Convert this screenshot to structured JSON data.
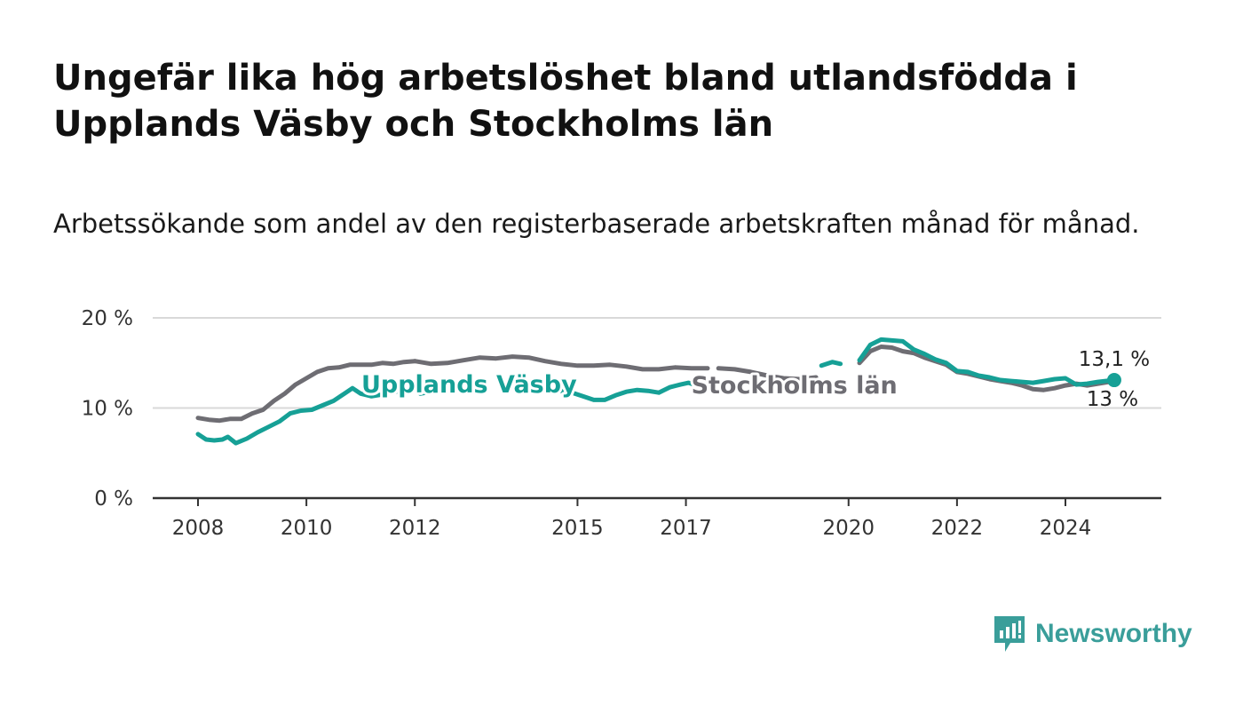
{
  "page": {
    "title": "Ungefär lika hög arbetslöshet bland utlandsfödda i Upplands Väsby och Stockholms län",
    "subtitle": "Arbetssökande som andel av den registerbaserade arbetskraften månad för månad.",
    "brand": "Newsworthy",
    "brand_color": "#3a9e9a"
  },
  "chart_data": {
    "type": "line",
    "title": "Ungefär lika hög arbetslöshet bland utlandsfödda i Upplands Väsby och Stockholms län",
    "subtitle": "Arbetssökande som andel av den registerbaserade arbetskraften månad för månad.",
    "xlabel": "",
    "ylabel": "",
    "ylim": [
      0,
      20
    ],
    "xlim": [
      2007.2,
      2025.8
    ],
    "yticks": [
      {
        "value": 0,
        "label": "0 %"
      },
      {
        "value": 10,
        "label": "10 %"
      },
      {
        "value": 20,
        "label": "20 %"
      }
    ],
    "xticks": [
      {
        "value": 2008,
        "label": "2008"
      },
      {
        "value": 2010,
        "label": "2010"
      },
      {
        "value": 2012,
        "label": "2012"
      },
      {
        "value": 2015,
        "label": "2015"
      },
      {
        "value": 2017,
        "label": "2017"
      },
      {
        "value": 2020,
        "label": "2020"
      },
      {
        "value": 2022,
        "label": "2022"
      },
      {
        "value": 2024,
        "label": "2024"
      }
    ],
    "grid": true,
    "series": [
      {
        "name": "Stockholms län",
        "color": "#6e6d73",
        "end_label": "13 %",
        "segments": [
          [
            [
              2008.0,
              8.9
            ],
            [
              2008.2,
              8.7
            ],
            [
              2008.4,
              8.6
            ],
            [
              2008.6,
              8.8
            ],
            [
              2008.8,
              8.8
            ],
            [
              2009.0,
              9.4
            ],
            [
              2009.2,
              9.8
            ],
            [
              2009.4,
              10.8
            ],
            [
              2009.6,
              11.6
            ],
            [
              2009.8,
              12.6
            ],
            [
              2010.0,
              13.3
            ],
            [
              2010.2,
              14.0
            ],
            [
              2010.4,
              14.4
            ],
            [
              2010.6,
              14.5
            ],
            [
              2010.8,
              14.8
            ],
            [
              2011.0,
              14.8
            ],
            [
              2011.2,
              14.8
            ],
            [
              2011.4,
              15.0
            ],
            [
              2011.6,
              14.9
            ],
            [
              2011.8,
              15.1
            ],
            [
              2012.0,
              15.2
            ]
          ],
          [
            [
              2012.0,
              15.2
            ],
            [
              2012.3,
              14.9
            ],
            [
              2012.6,
              15.0
            ],
            [
              2012.9,
              15.3
            ],
            [
              2013.2,
              15.6
            ],
            [
              2013.5,
              15.5
            ],
            [
              2013.8,
              15.7
            ],
            [
              2014.1,
              15.6
            ],
            [
              2014.4,
              15.2
            ],
            [
              2014.7,
              14.9
            ],
            [
              2015.0,
              14.7
            ],
            [
              2015.3,
              14.7
            ],
            [
              2015.6,
              14.8
            ],
            [
              2015.9,
              14.6
            ],
            [
              2016.2,
              14.3
            ],
            [
              2016.5,
              14.3
            ],
            [
              2016.8,
              14.5
            ],
            [
              2017.1,
              14.4
            ],
            [
              2017.4,
              14.4
            ]
          ],
          [
            [
              2017.6,
              14.4
            ],
            [
              2017.9,
              14.3
            ],
            [
              2018.2,
              14.0
            ],
            [
              2018.5,
              13.6
            ],
            [
              2018.8,
              13.3
            ],
            [
              2019.1,
              13.2
            ],
            [
              2019.4,
              13.4
            ]
          ],
          [
            [
              2020.2,
              15.0
            ],
            [
              2020.4,
              16.3
            ],
            [
              2020.6,
              16.8
            ],
            [
              2020.8,
              16.7
            ],
            [
              2021.0,
              16.3
            ],
            [
              2021.2,
              16.1
            ],
            [
              2021.4,
              15.6
            ],
            [
              2021.6,
              15.2
            ],
            [
              2021.8,
              14.8
            ],
            [
              2022.0,
              14.0
            ],
            [
              2022.2,
              13.8
            ],
            [
              2022.4,
              13.5
            ],
            [
              2022.6,
              13.2
            ],
            [
              2022.8,
              13.0
            ],
            [
              2023.0,
              12.8
            ],
            [
              2023.2,
              12.5
            ],
            [
              2023.4,
              12.1
            ],
            [
              2023.6,
              12.0
            ],
            [
              2023.8,
              12.2
            ],
            [
              2024.0,
              12.5
            ],
            [
              2024.2,
              12.7
            ],
            [
              2024.4,
              12.5
            ],
            [
              2024.6,
              12.7
            ],
            [
              2024.9,
              13.0
            ]
          ]
        ]
      },
      {
        "name": "Upplands Väsby",
        "color": "#16a096",
        "end_label": "13,1 %",
        "segments": [
          [
            [
              2008.0,
              7.1
            ],
            [
              2008.15,
              6.5
            ],
            [
              2008.3,
              6.4
            ],
            [
              2008.45,
              6.5
            ],
            [
              2008.55,
              6.8
            ],
            [
              2008.7,
              6.1
            ],
            [
              2008.9,
              6.6
            ],
            [
              2009.1,
              7.3
            ],
            [
              2009.3,
              7.9
            ],
            [
              2009.5,
              8.5
            ],
            [
              2009.7,
              9.4
            ],
            [
              2009.9,
              9.7
            ],
            [
              2010.1,
              9.8
            ],
            [
              2010.3,
              10.3
            ],
            [
              2010.5,
              10.8
            ],
            [
              2010.7,
              11.6
            ],
            [
              2010.85,
              12.2
            ],
            [
              2011.0,
              11.6
            ],
            [
              2011.2,
              11.3
            ],
            [
              2011.4,
              11.5
            ],
            [
              2011.6,
              11.8
            ],
            [
              2011.8,
              11.9
            ],
            [
              2011.95,
              12.2
            ],
            [
              2012.1,
              11.6
            ],
            [
              2012.3,
              11.8
            ]
          ],
          [
            [
              2014.5,
              11.8
            ],
            [
              2014.7,
              11.9
            ],
            [
              2014.9,
              11.7
            ],
            [
              2015.1,
              11.3
            ],
            [
              2015.3,
              10.9
            ],
            [
              2015.5,
              10.9
            ],
            [
              2015.7,
              11.4
            ],
            [
              2015.9,
              11.8
            ],
            [
              2016.1,
              12.0
            ],
            [
              2016.3,
              11.9
            ],
            [
              2016.5,
              11.7
            ],
            [
              2016.7,
              12.3
            ],
            [
              2016.9,
              12.6
            ],
            [
              2017.05,
              12.8
            ],
            [
              2017.2,
              12.5
            ],
            [
              2017.35,
              12.3
            ]
          ],
          [
            [
              2019.5,
              14.7
            ],
            [
              2019.7,
              15.1
            ],
            [
              2019.85,
              14.9
            ]
          ],
          [
            [
              2020.2,
              15.3
            ],
            [
              2020.4,
              17.0
            ],
            [
              2020.6,
              17.6
            ],
            [
              2020.8,
              17.5
            ],
            [
              2021.0,
              17.4
            ],
            [
              2021.2,
              16.5
            ],
            [
              2021.4,
              16.0
            ],
            [
              2021.6,
              15.4
            ],
            [
              2021.8,
              15.0
            ],
            [
              2022.0,
              14.1
            ],
            [
              2022.2,
              14.0
            ],
            [
              2022.4,
              13.6
            ],
            [
              2022.6,
              13.4
            ],
            [
              2022.8,
              13.1
            ],
            [
              2023.0,
              13.0
            ],
            [
              2023.2,
              12.9
            ],
            [
              2023.4,
              12.8
            ],
            [
              2023.6,
              13.0
            ],
            [
              2023.8,
              13.2
            ],
            [
              2024.0,
              13.3
            ],
            [
              2024.2,
              12.6
            ],
            [
              2024.4,
              12.7
            ],
            [
              2024.6,
              12.9
            ],
            [
              2024.9,
              13.1
            ]
          ]
        ]
      }
    ],
    "series_labels": [
      {
        "series": "Upplands Väsby",
        "text": "Upplands Väsby",
        "x": 2013.0,
        "y": 12.7
      },
      {
        "series": "Stockholms län",
        "text": "Stockholms län",
        "x": 2019.0,
        "y": 12.6
      }
    ]
  }
}
